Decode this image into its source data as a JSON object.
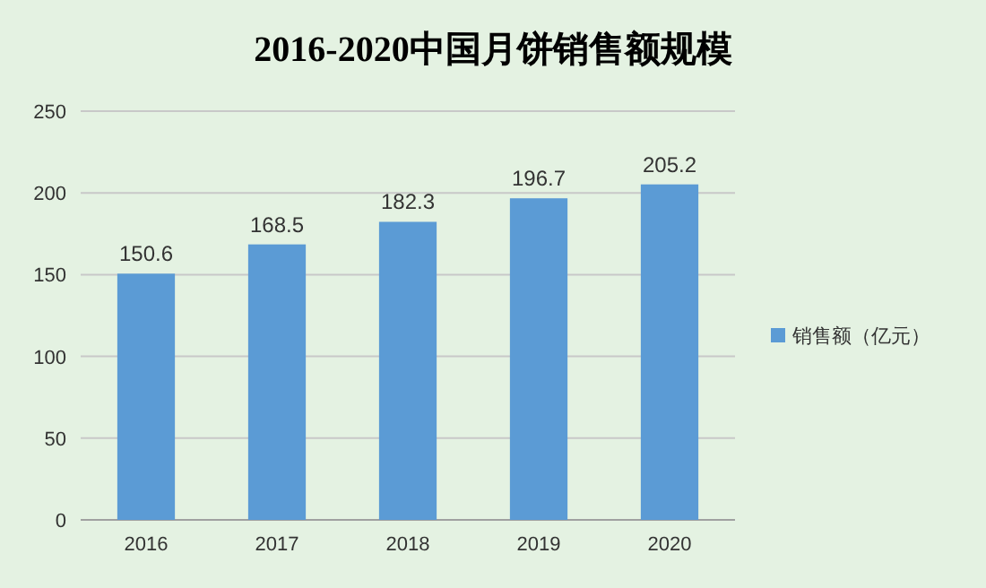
{
  "chart_data": {
    "type": "bar",
    "title": "2016-2020中国月饼销售额规模",
    "categories": [
      "2016",
      "2017",
      "2018",
      "2019",
      "2020"
    ],
    "series": [
      {
        "name": "销售额（亿元）",
        "color": "#5b9bd5",
        "values": [
          150.6,
          168.5,
          182.3,
          196.7,
          205.2
        ]
      }
    ],
    "ylim": [
      0,
      250
    ],
    "yticks": [
      0,
      50,
      100,
      150,
      200,
      250
    ],
    "grid": "y",
    "legend": "right",
    "data_labels": true
  }
}
